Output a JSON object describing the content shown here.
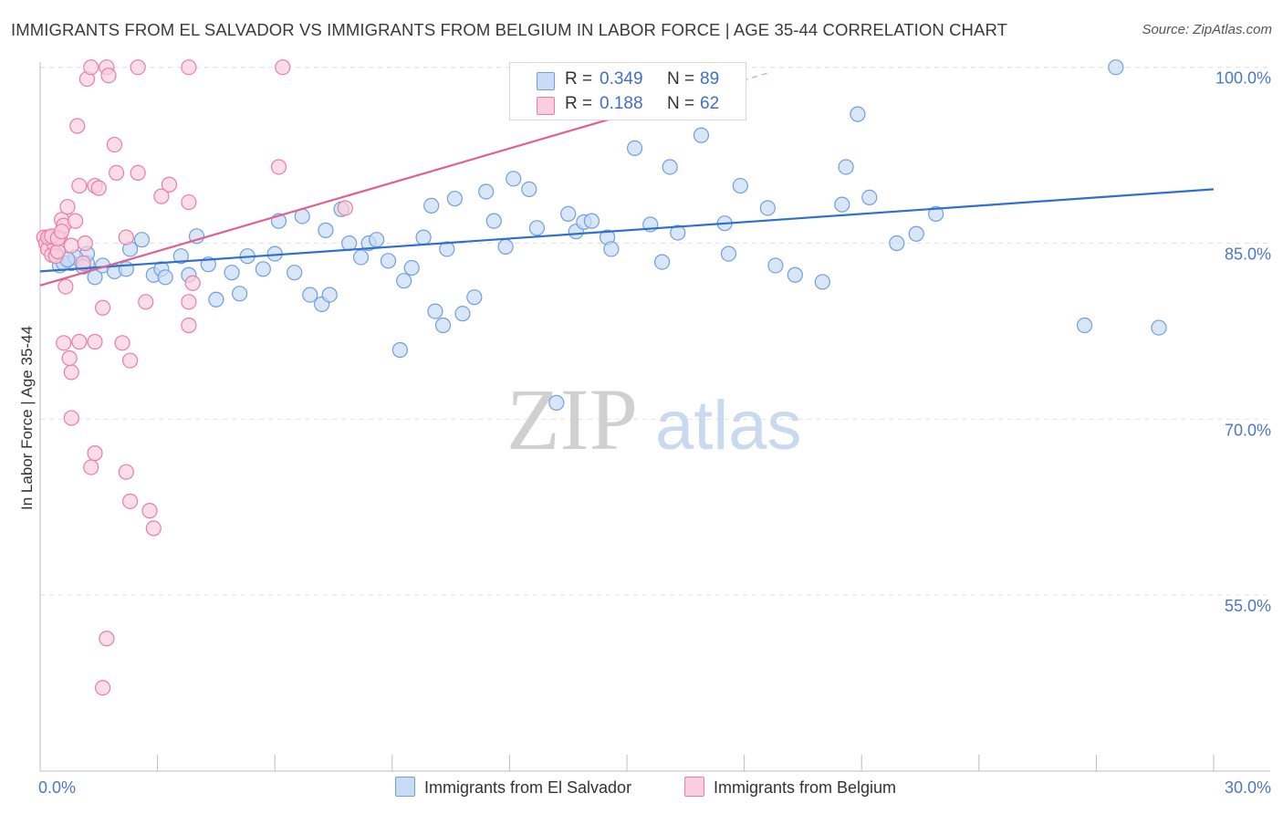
{
  "chart_data": {
    "type": "scatter",
    "title": "IMMIGRANTS FROM EL SALVADOR VS IMMIGRANTS FROM BELGIUM IN LABOR FORCE | AGE 35-44 CORRELATION CHART",
    "source": "Source: ZipAtlas.com",
    "ylabel": "In Labor Force | Age 35-44",
    "xlabel": "",
    "xlim": [
      0,
      30
    ],
    "ylim": [
      40,
      102
    ],
    "x_tick_labels": [
      "0.0%",
      "30.0%"
    ],
    "y_ticks": [
      {
        "value": 55,
        "label": "55.0%"
      },
      {
        "value": 70,
        "label": "70.0%"
      },
      {
        "value": 85,
        "label": "85.0%"
      },
      {
        "value": 100,
        "label": "100.0%"
      }
    ],
    "watermark": "ZIPatlas",
    "legend": {
      "rows": [
        {
          "r_label": "R =",
          "r_value": "0.349",
          "n_label": "N =",
          "n_value": "89"
        },
        {
          "r_label": "R =",
          "r_value": "0.188",
          "n_label": "N =",
          "n_value": "62"
        }
      ]
    },
    "series": [
      {
        "name": "Immigrants from El Salvador",
        "color": "#6f9fe0",
        "fill": "#c9dcf5",
        "trend": {
          "x": [
            0,
            30
          ],
          "y": [
            82.6,
            89.6
          ]
        },
        "points": [
          [
            0.5,
            83.1
          ],
          [
            0.8,
            83.3
          ],
          [
            1.2,
            83.3
          ],
          [
            1.4,
            82.1
          ],
          [
            1.2,
            84.1
          ],
          [
            0.4,
            84.1
          ],
          [
            1.6,
            83.1
          ],
          [
            1.9,
            82.6
          ],
          [
            2.2,
            82.8
          ],
          [
            2.3,
            84.5
          ],
          [
            2.6,
            85.3
          ],
          [
            2.9,
            82.3
          ],
          [
            3.1,
            82.8
          ],
          [
            3.2,
            82.1
          ],
          [
            3.6,
            83.9
          ],
          [
            3.8,
            82.3
          ],
          [
            4.0,
            85.6
          ],
          [
            4.3,
            83.2
          ],
          [
            4.5,
            80.2
          ],
          [
            4.9,
            82.5
          ],
          [
            5.1,
            80.7
          ],
          [
            5.3,
            83.9
          ],
          [
            5.7,
            82.8
          ],
          [
            6.0,
            84.1
          ],
          [
            6.1,
            86.9
          ],
          [
            6.5,
            82.5
          ],
          [
            6.7,
            87.3
          ],
          [
            6.9,
            80.6
          ],
          [
            7.3,
            86.1
          ],
          [
            7.2,
            79.8
          ],
          [
            7.4,
            80.6
          ],
          [
            7.7,
            87.9
          ],
          [
            7.9,
            85.0
          ],
          [
            8.2,
            83.8
          ],
          [
            8.4,
            85.0
          ],
          [
            8.6,
            85.3
          ],
          [
            8.9,
            83.5
          ],
          [
            9.2,
            75.9
          ],
          [
            9.3,
            81.8
          ],
          [
            9.5,
            82.9
          ],
          [
            9.8,
            85.5
          ],
          [
            10.0,
            88.2
          ],
          [
            10.1,
            79.2
          ],
          [
            10.3,
            78.0
          ],
          [
            10.4,
            84.5
          ],
          [
            10.6,
            88.8
          ],
          [
            10.8,
            79.0
          ],
          [
            11.1,
            80.4
          ],
          [
            11.4,
            89.4
          ],
          [
            11.6,
            86.9
          ],
          [
            11.9,
            84.7
          ],
          [
            12.1,
            90.5
          ],
          [
            12.5,
            89.6
          ],
          [
            12.7,
            86.3
          ],
          [
            13.2,
            71.4
          ],
          [
            13.5,
            87.5
          ],
          [
            13.7,
            86.0
          ],
          [
            13.9,
            86.8
          ],
          [
            14.1,
            86.9
          ],
          [
            14.5,
            85.5
          ],
          [
            14.6,
            84.5
          ],
          [
            15.2,
            93.1
          ],
          [
            15.6,
            86.6
          ],
          [
            15.9,
            83.4
          ],
          [
            16.1,
            91.5
          ],
          [
            16.3,
            85.9
          ],
          [
            16.9,
            94.2
          ],
          [
            17.1,
            96.5
          ],
          [
            17.5,
            86.7
          ],
          [
            17.6,
            84.1
          ],
          [
            17.9,
            89.9
          ],
          [
            18.6,
            88.0
          ],
          [
            18.8,
            83.1
          ],
          [
            19.3,
            82.3
          ],
          [
            20.0,
            81.7
          ],
          [
            20.5,
            88.3
          ],
          [
            20.6,
            91.5
          ],
          [
            20.9,
            96.0
          ],
          [
            21.2,
            88.9
          ],
          [
            21.9,
            85.0
          ],
          [
            22.4,
            85.8
          ],
          [
            22.9,
            87.5
          ],
          [
            26.7,
            78.0
          ],
          [
            27.5,
            100.0
          ],
          [
            28.6,
            77.8
          ],
          [
            0.6,
            83.3
          ],
          [
            0.9,
            83.8
          ],
          [
            1.1,
            83.0
          ],
          [
            0.7,
            83.6
          ]
        ]
      },
      {
        "name": "Immigrants from Belgium",
        "color": "#e87fa2",
        "fill": "#f9cfdd",
        "trend": {
          "x": [
            0,
            15
          ],
          "y": [
            81.4,
            96.0
          ]
        },
        "trend_dashed": {
          "x": [
            15,
            18.7
          ],
          "y": [
            96.0,
            99.6
          ]
        },
        "points": [
          [
            0.1,
            85.5
          ],
          [
            0.15,
            85.0
          ],
          [
            0.2,
            84.5
          ],
          [
            0.25,
            85.5
          ],
          [
            0.3,
            84.0
          ],
          [
            0.35,
            85.0
          ],
          [
            0.4,
            83.9
          ],
          [
            0.45,
            84.3
          ],
          [
            0.5,
            85.5
          ],
          [
            0.55,
            87.0
          ],
          [
            0.6,
            86.5
          ],
          [
            0.65,
            81.3
          ],
          [
            0.7,
            88.1
          ],
          [
            0.8,
            84.8
          ],
          [
            0.9,
            86.9
          ],
          [
            0.95,
            95.0
          ],
          [
            1.0,
            89.9
          ],
          [
            1.1,
            83.3
          ],
          [
            1.15,
            85.0
          ],
          [
            1.2,
            99.0
          ],
          [
            1.3,
            100.0
          ],
          [
            1.4,
            89.9
          ],
          [
            1.5,
            89.7
          ],
          [
            1.6,
            79.5
          ],
          [
            1.7,
            100.0
          ],
          [
            1.75,
            99.3
          ],
          [
            1.9,
            93.4
          ],
          [
            1.95,
            91.0
          ],
          [
            2.1,
            76.5
          ],
          [
            2.2,
            85.5
          ],
          [
            2.3,
            75.0
          ],
          [
            2.5,
            91.0
          ],
          [
            2.5,
            100.0
          ],
          [
            2.7,
            80.0
          ],
          [
            2.8,
            62.2
          ],
          [
            2.9,
            60.7
          ],
          [
            3.1,
            89.0
          ],
          [
            3.3,
            90.0
          ],
          [
            3.8,
            80.0
          ],
          [
            3.8,
            88.5
          ],
          [
            3.9,
            81.6
          ],
          [
            3.8,
            78.0
          ],
          [
            3.8,
            100.0
          ],
          [
            1.7,
            51.3
          ],
          [
            1.6,
            47.1
          ],
          [
            2.2,
            65.5
          ],
          [
            1.3,
            65.9
          ],
          [
            1.4,
            67.1
          ],
          [
            0.8,
            70.1
          ],
          [
            0.6,
            76.5
          ],
          [
            0.8,
            74.0
          ],
          [
            0.75,
            75.2
          ],
          [
            1.0,
            76.6
          ],
          [
            1.4,
            76.6
          ],
          [
            2.3,
            63.0
          ],
          [
            6.1,
            91.5
          ],
          [
            6.2,
            100.0
          ],
          [
            7.8,
            88.0
          ],
          [
            0.2,
            85.5
          ],
          [
            0.3,
            85.6
          ],
          [
            0.45,
            85.4
          ],
          [
            0.55,
            86.0
          ]
        ]
      }
    ]
  }
}
